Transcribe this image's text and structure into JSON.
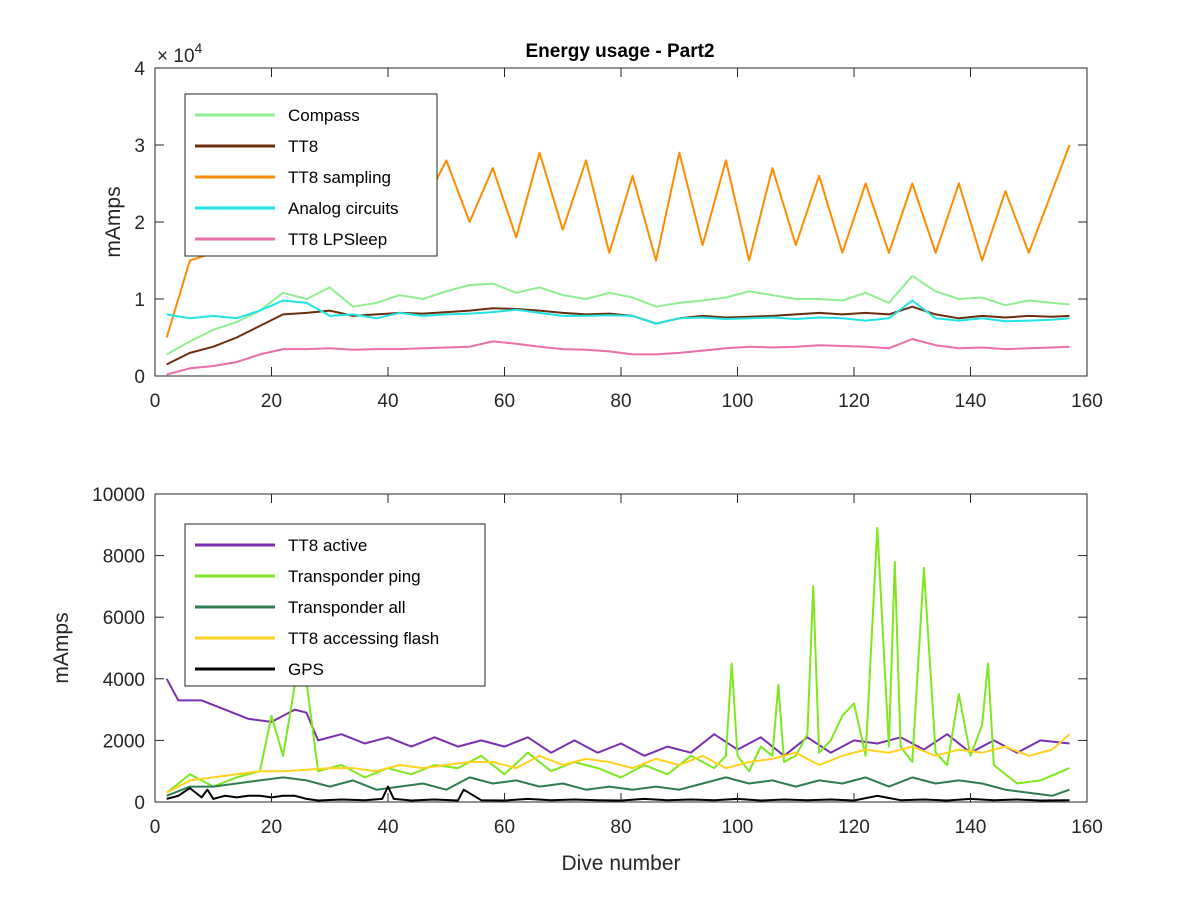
{
  "figure": {
    "title": "Energy usage - Part2"
  },
  "chart_data": [
    {
      "type": "line",
      "title": "Energy usage - Part2",
      "xlabel": "",
      "ylabel": "mAmps",
      "xlim": [
        0,
        160
      ],
      "ylim": [
        0,
        40000
      ],
      "xticks": [
        0,
        20,
        40,
        60,
        80,
        100,
        120,
        140,
        160
      ],
      "yticks": [
        0,
        10000,
        20000,
        30000,
        40000
      ],
      "ytick_labels": [
        "0",
        "1",
        "2",
        "3",
        "4"
      ],
      "y_exponent_base": "× 10",
      "y_exponent_power": "4",
      "grid": false,
      "legend_position": "top-left",
      "x": [
        2,
        6,
        10,
        14,
        18,
        22,
        26,
        30,
        34,
        38,
        42,
        46,
        50,
        54,
        58,
        62,
        66,
        70,
        74,
        78,
        82,
        86,
        90,
        94,
        98,
        102,
        106,
        110,
        114,
        118,
        122,
        126,
        130,
        134,
        138,
        142,
        146,
        150,
        154,
        157
      ],
      "series": [
        {
          "name": "Compass",
          "color": "#90ee90",
          "values": [
            2800,
            4500,
            6000,
            7000,
            8500,
            10800,
            10000,
            11500,
            9000,
            9500,
            10500,
            10000,
            11000,
            11800,
            12000,
            10800,
            11500,
            10500,
            10000,
            10800,
            10200,
            9000,
            9500,
            9800,
            10200,
            11000,
            10500,
            10000,
            10000,
            9800,
            10800,
            9500,
            13000,
            11000,
            10000,
            10200,
            9200,
            9800,
            9500,
            9300
          ]
        },
        {
          "name": "TT8",
          "color": "#6b2e0c",
          "values": [
            1500,
            3000,
            3800,
            5000,
            6500,
            8000,
            8200,
            8500,
            7800,
            8000,
            8200,
            8100,
            8300,
            8500,
            8800,
            8700,
            8500,
            8200,
            8000,
            8100,
            7800,
            6800,
            7500,
            7800,
            7600,
            7700,
            7800,
            8000,
            8200,
            8000,
            8200,
            8000,
            9000,
            8000,
            7500,
            7800,
            7600,
            7800,
            7700,
            7800
          ]
        },
        {
          "name": "TT8 sampling",
          "color": "#ff8c00",
          "values": [
            5000,
            15000,
            16000,
            17000,
            17500,
            17000,
            25000,
            22000,
            25000,
            22000,
            24000,
            22000,
            28000,
            20000,
            27000,
            18000,
            29000,
            19000,
            28000,
            16000,
            26000,
            15000,
            29000,
            17000,
            28000,
            15000,
            27000,
            17000,
            26000,
            16000,
            25000,
            16000,
            25000,
            16000,
            25000,
            15000,
            24000,
            16000,
            24000,
            30000
          ]
        },
        {
          "name": "Analog circuits",
          "color": "#22e3e3",
          "values": [
            8000,
            7500,
            7800,
            7500,
            8500,
            9800,
            9500,
            7800,
            8000,
            7500,
            8200,
            7800,
            8000,
            8100,
            8300,
            8600,
            8200,
            7800,
            7800,
            7900,
            7800,
            6800,
            7500,
            7600,
            7400,
            7500,
            7600,
            7400,
            7600,
            7500,
            7200,
            7500,
            9800,
            7500,
            7200,
            7500,
            7100,
            7200,
            7300,
            7500
          ]
        },
        {
          "name": "TT8 LPSleep",
          "color": "#e86fa8",
          "values": [
            200,
            1000,
            1300,
            1800,
            2800,
            3500,
            3500,
            3600,
            3400,
            3500,
            3500,
            3600,
            3700,
            3800,
            4500,
            4200,
            3800,
            3500,
            3400,
            3200,
            2800,
            2800,
            3000,
            3300,
            3600,
            3800,
            3700,
            3800,
            4000,
            3900,
            3800,
            3600,
            4800,
            4000,
            3600,
            3700,
            3500,
            3600,
            3700,
            3800
          ]
        }
      ]
    },
    {
      "type": "line",
      "title": "",
      "xlabel": "Dive number",
      "ylabel": "mAmps",
      "xlim": [
        0,
        160
      ],
      "ylim": [
        0,
        10000
      ],
      "xticks": [
        0,
        20,
        40,
        60,
        80,
        100,
        120,
        140,
        160
      ],
      "yticks": [
        0,
        2000,
        4000,
        6000,
        8000,
        10000
      ],
      "ytick_labels": [
        "0",
        "2000",
        "4000",
        "6000",
        "8000",
        "10000"
      ],
      "grid": false,
      "legend_position": "top-left",
      "series": [
        {
          "name": "TT8 active",
          "color": "#7b2fb0",
          "x": [
            2,
            4,
            8,
            12,
            16,
            20,
            24,
            26,
            28,
            32,
            36,
            40,
            44,
            48,
            52,
            56,
            60,
            64,
            68,
            72,
            76,
            80,
            84,
            88,
            92,
            96,
            100,
            104,
            108,
            112,
            116,
            120,
            124,
            128,
            132,
            136,
            140,
            144,
            148,
            152,
            157
          ],
          "values": [
            4000,
            3300,
            3300,
            3000,
            2700,
            2600,
            3000,
            2900,
            2000,
            2200,
            1900,
            2100,
            1800,
            2100,
            1800,
            2000,
            1800,
            2100,
            1600,
            2000,
            1600,
            1900,
            1500,
            1800,
            1600,
            2200,
            1700,
            2100,
            1500,
            2100,
            1600,
            2000,
            1900,
            2100,
            1700,
            2200,
            1600,
            2000,
            1600,
            2000,
            1900
          ]
        },
        {
          "name": "Transponder ping",
          "color": "#7ee81e",
          "x": [
            2,
            6,
            10,
            14,
            18,
            20,
            22,
            24,
            26,
            28,
            32,
            36,
            40,
            44,
            48,
            52,
            56,
            60,
            64,
            68,
            72,
            76,
            80,
            84,
            88,
            92,
            96,
            98,
            99,
            100,
            102,
            104,
            106,
            107,
            108,
            110,
            112,
            113,
            114,
            116,
            118,
            120,
            122,
            124,
            126,
            127,
            128,
            130,
            132,
            134,
            136,
            138,
            140,
            142,
            143,
            144,
            148,
            152,
            157
          ],
          "values": [
            300,
            900,
            500,
            800,
            1000,
            2800,
            1500,
            3800,
            3900,
            1000,
            1200,
            800,
            1100,
            900,
            1200,
            1100,
            1500,
            900,
            1600,
            1000,
            1300,
            1100,
            800,
            1200,
            900,
            1500,
            1100,
            1500,
            4500,
            1500,
            1000,
            1800,
            1500,
            3800,
            1300,
            1500,
            2200,
            7000,
            1600,
            2000,
            2800,
            3200,
            1500,
            8900,
            1800,
            7800,
            1800,
            1300,
            7600,
            1600,
            1200,
            3500,
            1500,
            2500,
            4500,
            1200,
            600,
            700,
            1100
          ]
        },
        {
          "name": "Transponder all",
          "color": "#2e7d4f",
          "x": [
            2,
            6,
            10,
            14,
            18,
            22,
            26,
            30,
            34,
            38,
            42,
            46,
            50,
            54,
            58,
            62,
            66,
            70,
            74,
            78,
            82,
            86,
            90,
            94,
            98,
            102,
            106,
            110,
            114,
            118,
            122,
            126,
            130,
            134,
            138,
            142,
            146,
            150,
            154,
            157
          ],
          "values": [
            200,
            500,
            500,
            600,
            700,
            800,
            700,
            500,
            700,
            400,
            500,
            600,
            400,
            800,
            600,
            700,
            500,
            600,
            400,
            500,
            400,
            500,
            400,
            600,
            800,
            600,
            700,
            500,
            700,
            600,
            800,
            500,
            800,
            600,
            700,
            600,
            400,
            300,
            200,
            400
          ]
        },
        {
          "name": "TT8 accessing flash",
          "color": "#ffd21f",
          "x": [
            2,
            6,
            10,
            14,
            18,
            22,
            26,
            30,
            34,
            38,
            42,
            46,
            50,
            54,
            58,
            62,
            66,
            70,
            74,
            78,
            82,
            86,
            90,
            94,
            98,
            102,
            106,
            110,
            114,
            118,
            122,
            126,
            130,
            134,
            138,
            142,
            146,
            150,
            154,
            157
          ],
          "values": [
            300,
            700,
            800,
            900,
            1000,
            1000,
            1050,
            1100,
            1100,
            1000,
            1200,
            1100,
            1200,
            1300,
            1300,
            1100,
            1500,
            1200,
            1400,
            1300,
            1100,
            1400,
            1200,
            1500,
            1100,
            1300,
            1400,
            1600,
            1200,
            1500,
            1700,
            1600,
            1800,
            1500,
            1700,
            1600,
            1800,
            1500,
            1700,
            2200
          ]
        },
        {
          "name": "GPS",
          "color": "#000000",
          "x": [
            2,
            4,
            6,
            8,
            9,
            10,
            12,
            14,
            16,
            18,
            20,
            22,
            24,
            26,
            28,
            32,
            36,
            39,
            40,
            41,
            44,
            48,
            52,
            53,
            56,
            60,
            64,
            68,
            72,
            76,
            80,
            84,
            88,
            92,
            96,
            100,
            104,
            108,
            112,
            116,
            120,
            124,
            128,
            132,
            136,
            140,
            144,
            148,
            152,
            157
          ],
          "values": [
            100,
            200,
            450,
            150,
            400,
            100,
            200,
            150,
            200,
            200,
            150,
            200,
            200,
            100,
            50,
            80,
            60,
            100,
            500,
            100,
            50,
            80,
            50,
            400,
            60,
            50,
            100,
            60,
            80,
            60,
            50,
            100,
            60,
            80,
            60,
            100,
            50,
            80,
            60,
            80,
            50,
            200,
            60,
            80,
            50,
            100,
            60,
            80,
            50,
            60
          ]
        }
      ]
    }
  ]
}
